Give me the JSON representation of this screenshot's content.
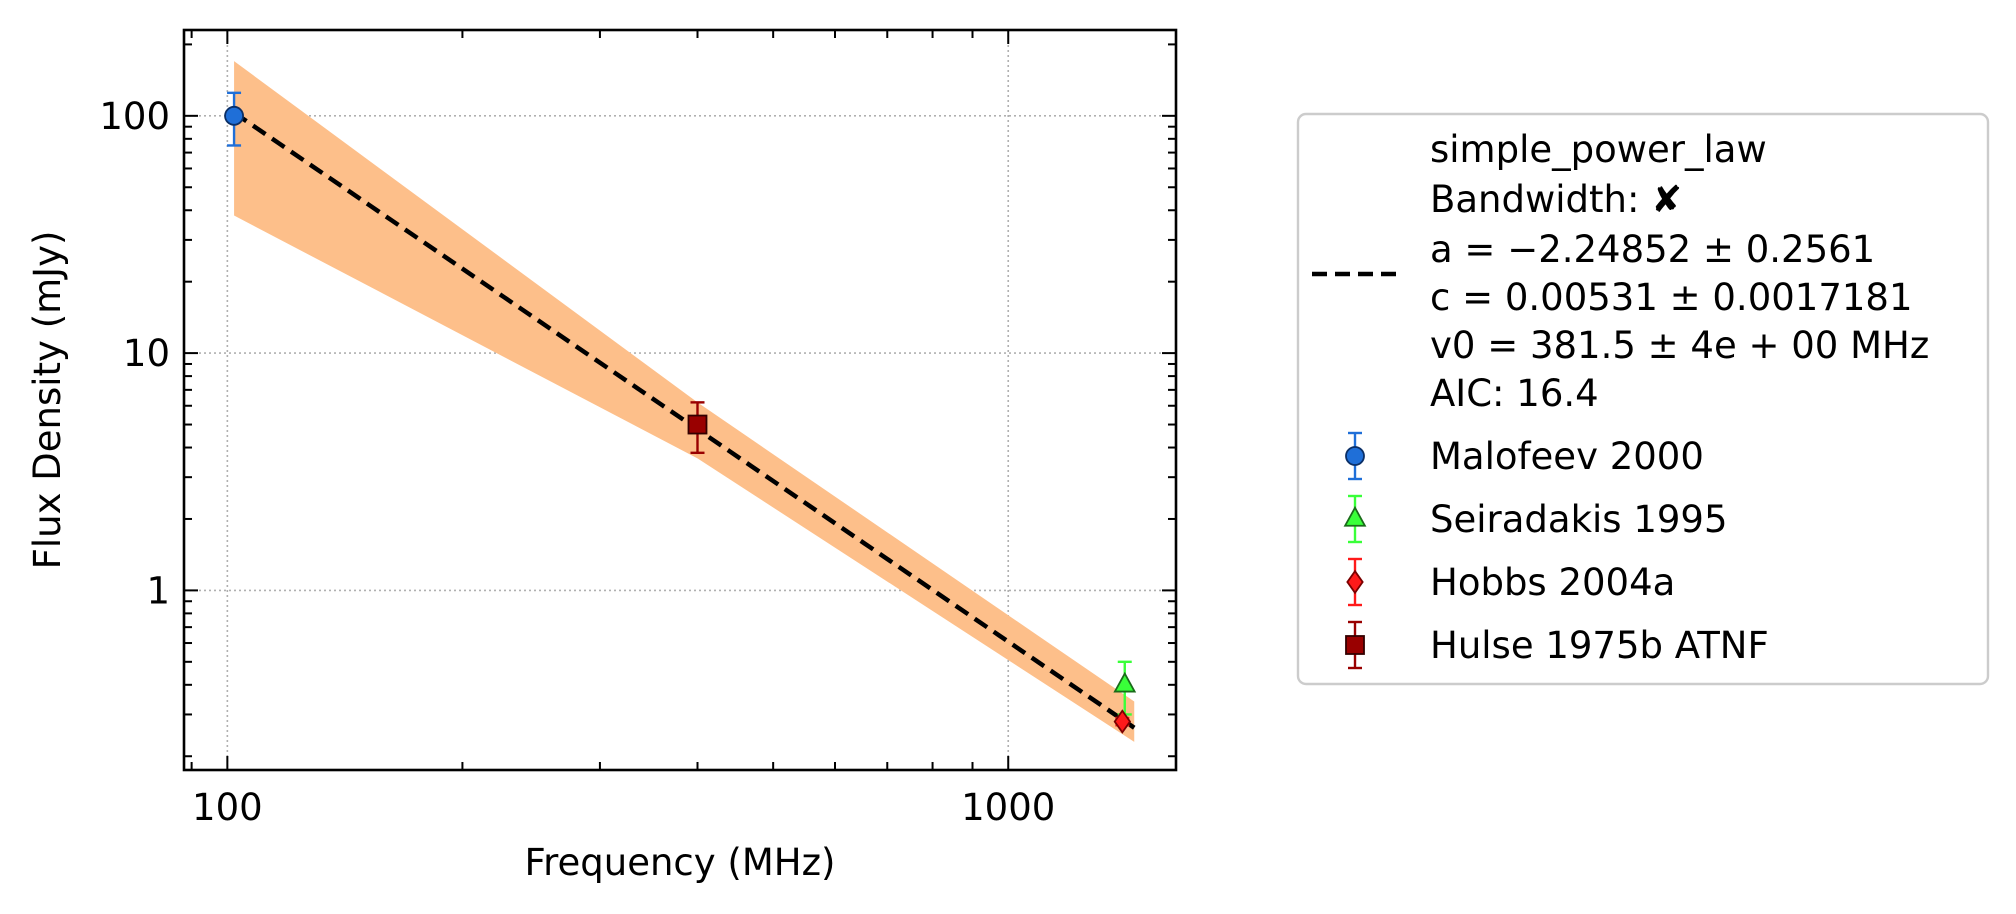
{
  "chart_data": {
    "type": "scatter",
    "xlabel": "Frequency (MHz)",
    "ylabel": "Flux Density (mJy)",
    "xscale": "log",
    "yscale": "log",
    "xlim": [
      88,
      1640
    ],
    "ylim": [
      0.175,
      230
    ],
    "x_ticks": [
      100,
      1000
    ],
    "x_tick_labels": [
      "100",
      "1000"
    ],
    "y_ticks": [
      1,
      10,
      100
    ],
    "y_tick_labels": [
      "1",
      "10",
      "100"
    ],
    "grid": true,
    "legend_position": "outside-right",
    "fit": {
      "model": "simple_power_law",
      "bandwidth_label": "Bandwidth:",
      "bandwidth_symbol": "✘",
      "lines": [
        "simple_power_law",
        "a = −2.24852 ± 0.2561",
        "c = 0.00531 ± 0.0017181",
        "v0 = 381.5 ± 4e + 00 MHz",
        "AIC: 16.4"
      ],
      "a": -2.24852,
      "c": 0.00531,
      "v0": 381.5,
      "x_range": [
        102,
        1450
      ],
      "band": {
        "x": [
          102,
          400,
          1450
        ],
        "lower": [
          38,
          3.6,
          0.23
        ],
        "upper": [
          170,
          6.2,
          0.34
        ]
      },
      "line_color": "#000000",
      "band_color": "#fdbf8a"
    },
    "series": [
      {
        "name": "Malofeev 2000",
        "marker": "circle",
        "color": "#1f6fd8",
        "edge": "#0b2f66",
        "errcolor": "#1f6fd8",
        "points": [
          {
            "x": 102,
            "y": 100,
            "ylo": 75,
            "yhi": 125
          }
        ]
      },
      {
        "name": "Seiradakis 1995",
        "marker": "triangle",
        "color": "#39ff39",
        "edge": "#1a6b1a",
        "errcolor": "#39ff39",
        "points": [
          {
            "x": 1410,
            "y": 0.4,
            "ylo": 0.3,
            "yhi": 0.5
          }
        ]
      },
      {
        "name": "Hobbs 2004a",
        "marker": "diamond",
        "color": "#ff1a1a",
        "edge": "#7a0000",
        "errcolor": "#ff1a1a",
        "points": [
          {
            "x": 1400,
            "y": 0.28,
            "ylo": 0.27,
            "yhi": 0.29
          }
        ]
      },
      {
        "name": "Hulse 1975b ATNF",
        "marker": "square",
        "color": "#990000",
        "edge": "#330000",
        "errcolor": "#990000",
        "points": [
          {
            "x": 400,
            "y": 5.0,
            "ylo": 3.8,
            "yhi": 6.2
          }
        ]
      }
    ]
  }
}
